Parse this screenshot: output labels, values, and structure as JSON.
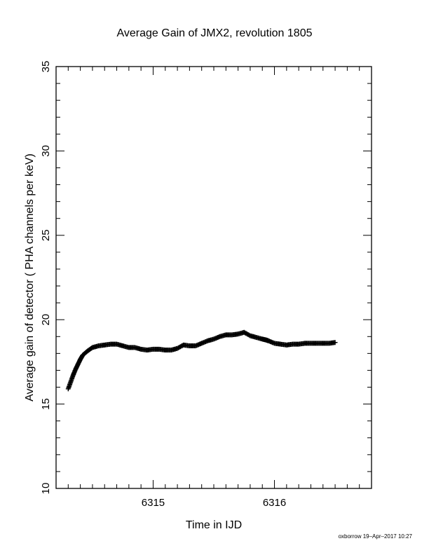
{
  "chart_data": {
    "type": "scatter",
    "title": "Average Gain of JMX2, revolution 1805",
    "xlabel": "Time in IJD",
    "ylabel": "Average gain of detector ( PHA channels per keV)",
    "xlim": [
      6314.2,
      6316.8
    ],
    "ylim": [
      10,
      35
    ],
    "xticks": [
      6315,
      6316
    ],
    "yticks": [
      10,
      15,
      20,
      25,
      30,
      35
    ],
    "grid": false,
    "marker": "plus",
    "color": "#000000",
    "series": [
      {
        "x": [
          6314.3,
          6314.32,
          6314.34,
          6314.36,
          6314.38,
          6314.4,
          6314.42,
          6314.46,
          6314.5,
          6314.55,
          6314.6,
          6314.65,
          6314.7,
          6314.75,
          6314.8,
          6314.85,
          6314.9,
          6314.95,
          6315.0,
          6315.05,
          6315.1,
          6315.15,
          6315.2,
          6315.25,
          6315.3,
          6315.35,
          6315.4,
          6315.45,
          6315.5,
          6315.55,
          6315.6,
          6315.65,
          6315.7,
          6315.75,
          6315.8,
          6315.85,
          6315.9,
          6315.93,
          6315.95,
          6316.0,
          6316.05,
          6316.1,
          6316.15,
          6316.2,
          6316.25,
          6316.3,
          6316.35,
          6316.4,
          6316.45,
          6316.5
        ],
        "y": [
          15.9,
          16.3,
          16.7,
          17.05,
          17.35,
          17.65,
          17.9,
          18.15,
          18.35,
          18.45,
          18.5,
          18.55,
          18.55,
          18.45,
          18.35,
          18.35,
          18.25,
          18.2,
          18.25,
          18.25,
          18.2,
          18.2,
          18.3,
          18.5,
          18.45,
          18.45,
          18.6,
          18.75,
          18.85,
          19.0,
          19.1,
          19.1,
          19.15,
          19.25,
          19.05,
          18.95,
          18.85,
          18.8,
          18.75,
          18.6,
          18.55,
          18.5,
          18.55,
          18.55,
          18.6,
          18.6,
          18.6,
          18.6,
          18.6,
          18.65
        ]
      }
    ]
  },
  "footer": {
    "stamp": "oxborrow 19–Apr–2017 10:27"
  }
}
